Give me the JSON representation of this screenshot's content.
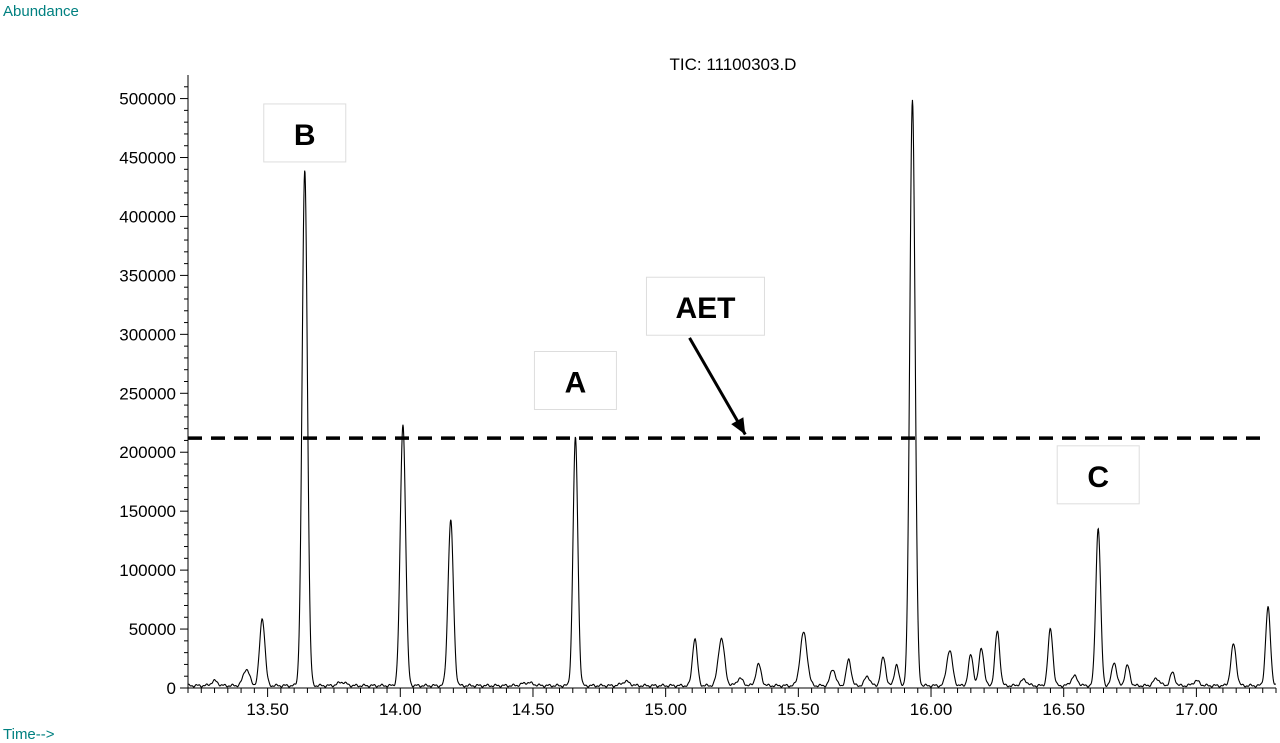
{
  "chart_data": {
    "type": "line",
    "title": "TIC: 11100303.D",
    "ylabel": "Abundance",
    "xlabel": "Time-->",
    "xlim": [
      13.2,
      17.3
    ],
    "ylim": [
      0,
      520000
    ],
    "x_ticks": [
      "13.50",
      "14.00",
      "14.50",
      "15.00",
      "15.50",
      "16.00",
      "16.50",
      "17.00"
    ],
    "y_ticks": [
      "0",
      "50000",
      "100000",
      "150000",
      "200000",
      "250000",
      "300000",
      "350000",
      "400000",
      "450000",
      "500000"
    ],
    "grid": false,
    "baseline": 2000,
    "peaks": [
      {
        "x": 13.3,
        "y": 4000,
        "w": 0.012
      },
      {
        "x": 13.42,
        "y": 14000,
        "w": 0.012
      },
      {
        "x": 13.48,
        "y": 57000,
        "w": 0.01
      },
      {
        "x": 13.64,
        "y": 437000,
        "w": 0.01
      },
      {
        "x": 13.78,
        "y": 3000,
        "w": 0.015
      },
      {
        "x": 14.01,
        "y": 222000,
        "w": 0.01
      },
      {
        "x": 14.19,
        "y": 140000,
        "w": 0.01
      },
      {
        "x": 14.48,
        "y": 2500,
        "w": 0.02
      },
      {
        "x": 14.66,
        "y": 210000,
        "w": 0.009
      },
      {
        "x": 14.85,
        "y": 3500,
        "w": 0.015
      },
      {
        "x": 15.11,
        "y": 40000,
        "w": 0.009
      },
      {
        "x": 15.21,
        "y": 40000,
        "w": 0.012
      },
      {
        "x": 15.28,
        "y": 6000,
        "w": 0.012
      },
      {
        "x": 15.35,
        "y": 18000,
        "w": 0.01
      },
      {
        "x": 15.52,
        "y": 45000,
        "w": 0.013
      },
      {
        "x": 15.63,
        "y": 14000,
        "w": 0.01
      },
      {
        "x": 15.69,
        "y": 22000,
        "w": 0.009
      },
      {
        "x": 15.76,
        "y": 8000,
        "w": 0.01
      },
      {
        "x": 15.82,
        "y": 24000,
        "w": 0.009
      },
      {
        "x": 15.87,
        "y": 18000,
        "w": 0.008
      },
      {
        "x": 15.93,
        "y": 498000,
        "w": 0.01
      },
      {
        "x": 16.07,
        "y": 30000,
        "w": 0.011
      },
      {
        "x": 16.15,
        "y": 26000,
        "w": 0.009
      },
      {
        "x": 16.19,
        "y": 32000,
        "w": 0.009
      },
      {
        "x": 16.25,
        "y": 46000,
        "w": 0.009
      },
      {
        "x": 16.35,
        "y": 5000,
        "w": 0.012
      },
      {
        "x": 16.45,
        "y": 48000,
        "w": 0.009
      },
      {
        "x": 16.54,
        "y": 8000,
        "w": 0.012
      },
      {
        "x": 16.63,
        "y": 134000,
        "w": 0.009
      },
      {
        "x": 16.69,
        "y": 20000,
        "w": 0.009
      },
      {
        "x": 16.74,
        "y": 17000,
        "w": 0.009
      },
      {
        "x": 16.85,
        "y": 6000,
        "w": 0.012
      },
      {
        "x": 16.91,
        "y": 11000,
        "w": 0.009
      },
      {
        "x": 17.0,
        "y": 4000,
        "w": 0.012
      },
      {
        "x": 17.14,
        "y": 35000,
        "w": 0.01
      },
      {
        "x": 17.27,
        "y": 66000,
        "w": 0.009
      }
    ],
    "threshold": {
      "label": "AET",
      "y": 212000
    },
    "annotations": [
      {
        "label": "B",
        "x": 13.64,
        "y": 470000
      },
      {
        "label": "A",
        "x": 14.66,
        "y": 260000
      },
      {
        "label": "AET",
        "x": 15.15,
        "y": 323000
      },
      {
        "label": "C",
        "x": 16.63,
        "y": 180000
      }
    ],
    "arrow": {
      "from_x": 15.09,
      "from_y": 297000,
      "to_x": 15.3,
      "to_y": 215000
    },
    "colors": {
      "trace": "#000000",
      "axis_title": "#008080",
      "threshold": "#000000"
    }
  }
}
